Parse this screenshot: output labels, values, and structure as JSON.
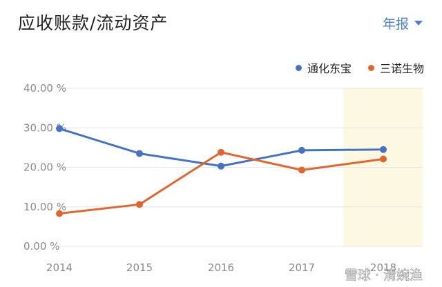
{
  "header": {
    "title": "应收账款/流动资产",
    "period_label": "年报"
  },
  "watermark": "雪球 · 清婉渔",
  "colors": {
    "series1": "#4472c4",
    "series2": "#e0662e",
    "highlight": "#fdf8e1",
    "grid": "#e6e6e6",
    "accent": "#4a7fd0"
  },
  "chart_data": {
    "type": "line",
    "title": "应收账款/流动资产",
    "x": [
      "2014",
      "2015",
      "2016",
      "2017",
      "2018"
    ],
    "y_ticks": [
      "40.00 %",
      "30.00 %",
      "20.00 %",
      "10.00 %",
      "0.00 %"
    ],
    "ylim": [
      0,
      40
    ],
    "grid": true,
    "legend_position": "top-right",
    "highlight_category": "2018",
    "series": [
      {
        "name": "通化东宝",
        "color": "#4472c4",
        "values": [
          29.8,
          23.5,
          20.3,
          24.3,
          24.5
        ]
      },
      {
        "name": "三诺生物",
        "color": "#e0662e",
        "values": [
          8.3,
          10.6,
          23.8,
          19.3,
          22.1
        ]
      }
    ]
  }
}
